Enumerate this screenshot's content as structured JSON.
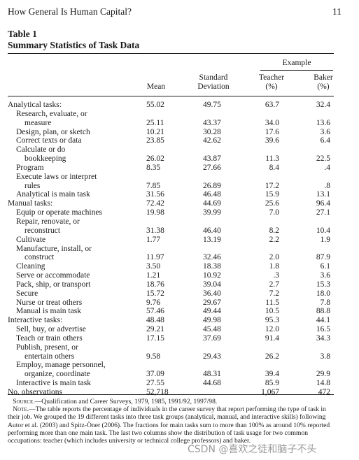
{
  "header": {
    "running_title": "How General Is Human Capital?",
    "page_number": "11"
  },
  "table": {
    "label": "Table 1",
    "caption": "Summary Statistics of Task Data",
    "example_header": "Example",
    "columns": {
      "mean": "Mean",
      "sd_line1": "Standard",
      "sd_line2": "Deviation",
      "teacher_line1": "Teacher",
      "teacher_line2": "(%)",
      "baker_line1": "Baker",
      "baker_line2": "(%)"
    },
    "rows": [
      {
        "label": "Analytical tasks:",
        "indent": 0,
        "mean": "55.02",
        "sd": "49.75",
        "teacher": "63.7",
        "baker": "32.4"
      },
      {
        "label": "Research, evaluate, or",
        "indent": 1,
        "mean": "",
        "sd": "",
        "teacher": "",
        "baker": ""
      },
      {
        "label": "measure",
        "indent": 2,
        "mean": "25.11",
        "sd": "43.37",
        "teacher": "34.0",
        "baker": "13.6"
      },
      {
        "label": "Design, plan, or sketch",
        "indent": 1,
        "mean": "10.21",
        "sd": "30.28",
        "teacher": "17.6",
        "baker": "3.6"
      },
      {
        "label": "Correct texts or data",
        "indent": 1,
        "mean": "23.85",
        "sd": "42.62",
        "teacher": "39.6",
        "baker": "6.4"
      },
      {
        "label": "Calculate or do",
        "indent": 1,
        "mean": "",
        "sd": "",
        "teacher": "",
        "baker": ""
      },
      {
        "label": "bookkeeping",
        "indent": 2,
        "mean": "26.02",
        "sd": "43.87",
        "teacher": "11.3",
        "baker": "22.5"
      },
      {
        "label": "Program",
        "indent": 1,
        "mean": "8.35",
        "sd": "27.66",
        "teacher": "8.4",
        "baker": ".4"
      },
      {
        "label": "Execute laws or interpret",
        "indent": 1,
        "mean": "",
        "sd": "",
        "teacher": "",
        "baker": ""
      },
      {
        "label": "rules",
        "indent": 2,
        "mean": "7.85",
        "sd": "26.89",
        "teacher": "17.2",
        "baker": ".8"
      },
      {
        "label": "Analytical is main task",
        "indent": 1,
        "mean": "31.56",
        "sd": "46.48",
        "teacher": "15.9",
        "baker": "13.1"
      },
      {
        "label": "Manual tasks:",
        "indent": 0,
        "mean": "72.42",
        "sd": "44.69",
        "teacher": "25.6",
        "baker": "96.4"
      },
      {
        "label": "Equip or operate machines",
        "indent": 1,
        "mean": "19.98",
        "sd": "39.99",
        "teacher": "7.0",
        "baker": "27.1"
      },
      {
        "label": "Repair, renovate, or",
        "indent": 1,
        "mean": "",
        "sd": "",
        "teacher": "",
        "baker": ""
      },
      {
        "label": "reconstruct",
        "indent": 2,
        "mean": "31.38",
        "sd": "46.40",
        "teacher": "8.2",
        "baker": "10.4"
      },
      {
        "label": "Cultivate",
        "indent": 1,
        "mean": "1.77",
        "sd": "13.19",
        "teacher": "2.2",
        "baker": "1.9"
      },
      {
        "label": "Manufacture, install, or",
        "indent": 1,
        "mean": "",
        "sd": "",
        "teacher": "",
        "baker": ""
      },
      {
        "label": "construct",
        "indent": 2,
        "mean": "11.97",
        "sd": "32.46",
        "teacher": "2.0",
        "baker": "87.9"
      },
      {
        "label": "Cleaning",
        "indent": 1,
        "mean": "3.50",
        "sd": "18.38",
        "teacher": "1.8",
        "baker": "6.1"
      },
      {
        "label": "Serve or accommodate",
        "indent": 1,
        "mean": "1.21",
        "sd": "10.92",
        "teacher": ".3",
        "baker": "3.6"
      },
      {
        "label": "Pack, ship, or transport",
        "indent": 1,
        "mean": "18.76",
        "sd": "39.04",
        "teacher": "2.7",
        "baker": "15.3"
      },
      {
        "label": "Secure",
        "indent": 1,
        "mean": "15.72",
        "sd": "36.40",
        "teacher": "7.2",
        "baker": "18.0"
      },
      {
        "label": "Nurse or treat others",
        "indent": 1,
        "mean": "9.76",
        "sd": "29.67",
        "teacher": "11.5",
        "baker": "7.8"
      },
      {
        "label": "Manual is main task",
        "indent": 1,
        "mean": "57.46",
        "sd": "49.44",
        "teacher": "10.5",
        "baker": "88.8"
      },
      {
        "label": "Interactive tasks:",
        "indent": 0,
        "mean": "48.48",
        "sd": "49.98",
        "teacher": "95.3",
        "baker": "44.1"
      },
      {
        "label": "Sell, buy, or advertise",
        "indent": 1,
        "mean": "29.21",
        "sd": "45.48",
        "teacher": "12.0",
        "baker": "16.5"
      },
      {
        "label": "Teach or train others",
        "indent": 1,
        "mean": "17.15",
        "sd": "37.69",
        "teacher": "91.4",
        "baker": "34.3"
      },
      {
        "label": "Publish, present, or",
        "indent": 1,
        "mean": "",
        "sd": "",
        "teacher": "",
        "baker": ""
      },
      {
        "label": "entertain others",
        "indent": 2,
        "mean": "9.58",
        "sd": "29.43",
        "teacher": "26.2",
        "baker": "3.8"
      },
      {
        "label": "Employ, manage personnel,",
        "indent": 1,
        "mean": "",
        "sd": "",
        "teacher": "",
        "baker": ""
      },
      {
        "label": "organize, coordinate",
        "indent": 2,
        "mean": "37.09",
        "sd": "48.31",
        "teacher": "39.4",
        "baker": "29.9"
      },
      {
        "label": "Interactive is main task",
        "indent": 1,
        "mean": "27.55",
        "sd": "44.68",
        "teacher": "85.9",
        "baker": "14.8"
      },
      {
        "label": "No. observations",
        "indent": 0,
        "mean": "52,718",
        "sd": "",
        "teacher": "1,067",
        "baker": "472"
      }
    ]
  },
  "notes": {
    "source_label": "Source.",
    "source_text": "—Qualification and Career Surveys, 1979, 1985, 1991/92, 1997/98.",
    "note_label": "Note.",
    "note_text": "—The table reports the percentage of individuals in the career survey that report performing the type of task in their job. We grouped the 19 different tasks into three task groups (analytical, manual, and interactive skills) following Autor et al. (2003) and Spitz-Öner (2006). The fractions for main tasks sum to more than 100% as around 10% reported performing more than one main task. The last two columns show the distribution of task usage for two common occupations: teacher (which includes university or technical college professors) and baker."
  },
  "watermark": "CSDN @喜欢之徒和脑子不头"
}
